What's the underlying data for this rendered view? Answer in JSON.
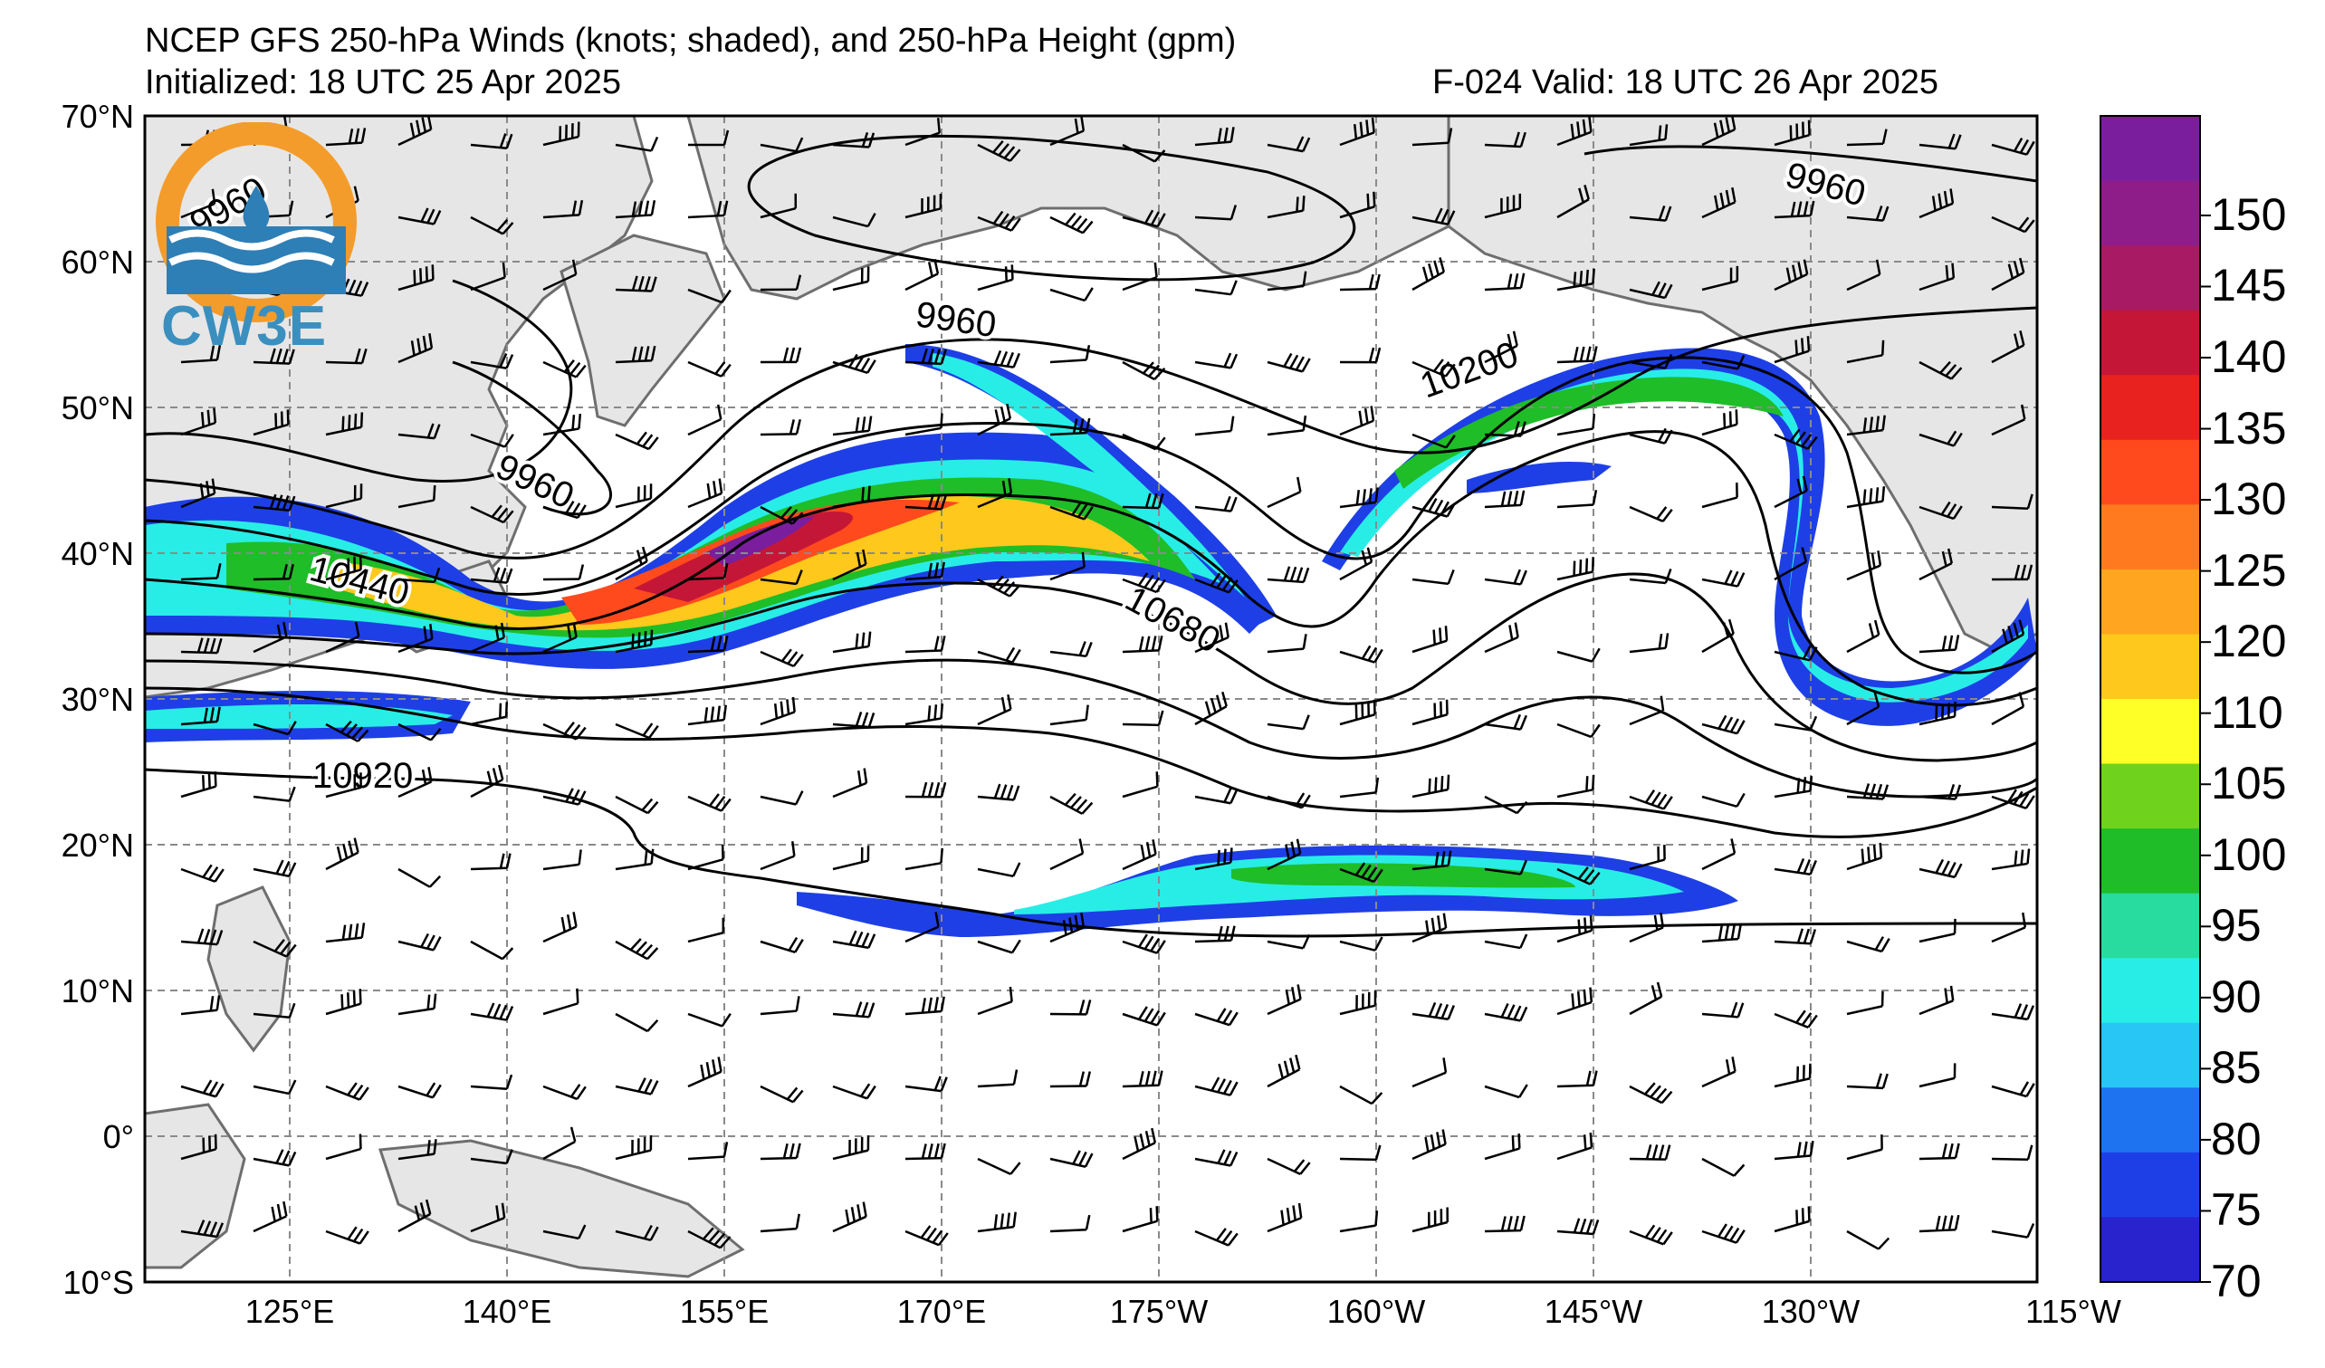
{
  "header": {
    "title": "NCEP GFS 250-hPa Winds (knots; shaded), and 250-hPa Height (gpm)",
    "init": "Initialized: 18 UTC 25 Apr 2025",
    "valid": "F-024  Valid: 18 UTC 26 Apr 2025"
  },
  "logo": {
    "text": "CW3E",
    "name": "cw3e-logo"
  },
  "axes": {
    "lat_labels": [
      "70°N",
      "60°N",
      "50°N",
      "40°N",
      "30°N",
      "20°N",
      "10°N",
      "0°",
      "10°S"
    ],
    "lon_labels": [
      "125°E",
      "140°E",
      "155°E",
      "170°E",
      "175°W",
      "160°W",
      "145°W",
      "130°W",
      "115°W"
    ]
  },
  "contour_labels": [
    "9960",
    "9960",
    "9960",
    "9960",
    "10200",
    "10440",
    "10680",
    "10920"
  ],
  "colorbar": {
    "labels": [
      "150",
      "145",
      "140",
      "135",
      "130",
      "125",
      "120",
      "110",
      "105",
      "100",
      "95",
      "90",
      "85",
      "80",
      "75",
      "70"
    ],
    "colors": [
      "#7a1e9e",
      "#8e1d8a",
      "#a81a63",
      "#c41737",
      "#e8221f",
      "#ff4a1d",
      "#ff7a1f",
      "#ffa51f",
      "#ffc81c",
      "#ffff28",
      "#6fd21c",
      "#1fbd28",
      "#28dca0",
      "#28ede6",
      "#28c6f5",
      "#1e73f0",
      "#1e3fe6",
      "#2823cd"
    ]
  },
  "colors": {
    "land": "#e6e6e6",
    "coast": "#6e6e6e",
    "grid": "#8a8a8a"
  }
}
